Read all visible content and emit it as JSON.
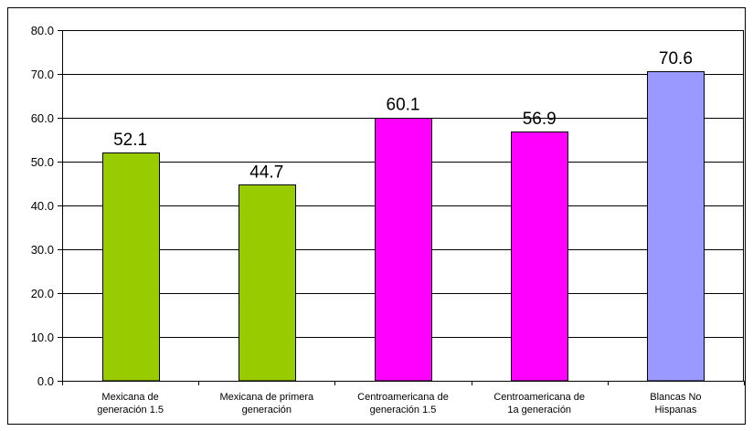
{
  "chart_data": {
    "type": "bar",
    "title": "",
    "xlabel": "",
    "ylabel": "",
    "ylim": [
      0,
      80
    ],
    "ytick_step": 10,
    "ytick_labels": [
      "0.0",
      "10.0",
      "20.0",
      "30.0",
      "40.0",
      "50.0",
      "60.0",
      "70.0",
      "80.0"
    ],
    "grid": true,
    "legend": "none",
    "categories": [
      [
        "Mexicana de",
        "generación 1.5"
      ],
      [
        "Mexicana de primera",
        "generación"
      ],
      [
        "Centroamericana de",
        "generación 1.5"
      ],
      [
        "Centroamericana de",
        "1a generación"
      ],
      [
        "Blancas No",
        "Hispanas"
      ]
    ],
    "values": [
      52.1,
      44.7,
      60.1,
      56.9,
      70.6
    ],
    "value_labels": [
      "52.1",
      "44.7",
      "60.1",
      "56.9",
      "70.6"
    ],
    "colors": [
      "#99CC00",
      "#99CC00",
      "#FF00FF",
      "#FF00FF",
      "#9999FF"
    ]
  }
}
